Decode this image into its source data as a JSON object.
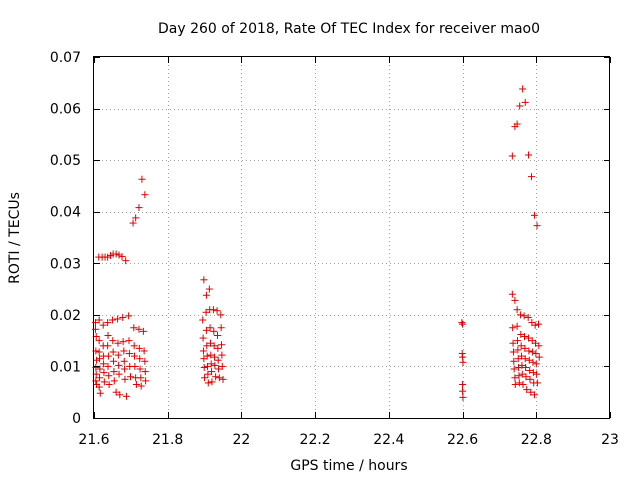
{
  "chart_data": {
    "type": "scatter",
    "title": "Day 260 of 2018, Rate Of TEC Index for receiver mao0",
    "xlabel": "GPS time / hours",
    "ylabel": "ROTI / TECUs",
    "xlim": [
      21.6,
      23.0
    ],
    "ylim": [
      0,
      0.07
    ],
    "xticks": [
      21.6,
      21.8,
      22.0,
      22.2,
      22.4,
      22.6,
      22.8,
      23.0
    ],
    "xtick_labels": [
      "21.6",
      "21.8",
      "22",
      "22.2",
      "22.4",
      "22.6",
      "22.8",
      "23"
    ],
    "yticks": [
      0,
      0.01,
      0.02,
      0.03,
      0.04,
      0.05,
      0.06,
      0.07
    ],
    "ytick_labels": [
      "0",
      "0.01",
      "0.02",
      "0.03",
      "0.04",
      "0.05",
      "0.06",
      "0.07"
    ],
    "grid": true,
    "marker": "+",
    "series": [
      {
        "name": "ROTI",
        "color": "#e00000",
        "points": [
          [
            21.604,
            0.0185
          ],
          [
            21.604,
            0.0172
          ],
          [
            21.606,
            0.0158
          ],
          [
            21.605,
            0.013
          ],
          [
            21.607,
            0.0112
          ],
          [
            21.605,
            0.0098
          ],
          [
            21.606,
            0.0085
          ],
          [
            21.605,
            0.0072
          ],
          [
            21.607,
            0.0065
          ],
          [
            21.614,
            0.019
          ],
          [
            21.614,
            0.015
          ],
          [
            21.614,
            0.0128
          ],
          [
            21.615,
            0.0115
          ],
          [
            21.616,
            0.0095
          ],
          [
            21.615,
            0.0078
          ],
          [
            21.614,
            0.006
          ],
          [
            21.617,
            0.0048
          ],
          [
            21.613,
            0.0312
          ],
          [
            21.622,
            0.0312
          ],
          [
            21.63,
            0.0312
          ],
          [
            21.637,
            0.0312
          ],
          [
            21.645,
            0.0315
          ],
          [
            21.652,
            0.0318
          ],
          [
            21.66,
            0.0318
          ],
          [
            21.668,
            0.0316
          ],
          [
            21.676,
            0.0313
          ],
          [
            21.686,
            0.0305
          ],
          [
            21.625,
            0.018
          ],
          [
            21.625,
            0.014
          ],
          [
            21.626,
            0.012
          ],
          [
            21.626,
            0.0105
          ],
          [
            21.627,
            0.0088
          ],
          [
            21.628,
            0.007
          ],
          [
            21.637,
            0.0185
          ],
          [
            21.638,
            0.016
          ],
          [
            21.637,
            0.014
          ],
          [
            21.639,
            0.012
          ],
          [
            21.638,
            0.01
          ],
          [
            21.64,
            0.0082
          ],
          [
            21.641,
            0.0065
          ],
          [
            21.65,
            0.019
          ],
          [
            21.651,
            0.015
          ],
          [
            21.652,
            0.0128
          ],
          [
            21.653,
            0.011
          ],
          [
            21.654,
            0.009
          ],
          [
            21.655,
            0.0072
          ],
          [
            21.66,
            0.005
          ],
          [
            21.664,
            0.0192
          ],
          [
            21.665,
            0.0145
          ],
          [
            21.666,
            0.0122
          ],
          [
            21.667,
            0.0102
          ],
          [
            21.668,
            0.0085
          ],
          [
            21.67,
            0.0045
          ],
          [
            21.678,
            0.0195
          ],
          [
            21.679,
            0.0148
          ],
          [
            21.681,
            0.013
          ],
          [
            21.682,
            0.011
          ],
          [
            21.683,
            0.0095
          ],
          [
            21.684,
            0.0075
          ],
          [
            21.688,
            0.0042
          ],
          [
            21.694,
            0.0198
          ],
          [
            21.695,
            0.015
          ],
          [
            21.696,
            0.0125
          ],
          [
            21.697,
            0.01
          ],
          [
            21.699,
            0.008
          ],
          [
            21.708,
            0.0175
          ],
          [
            21.709,
            0.014
          ],
          [
            21.71,
            0.012
          ],
          [
            21.711,
            0.01
          ],
          [
            21.713,
            0.0078
          ],
          [
            21.715,
            0.0065
          ],
          [
            21.722,
            0.0172
          ],
          [
            21.723,
            0.0135
          ],
          [
            21.724,
            0.0115
          ],
          [
            21.725,
            0.0095
          ],
          [
            21.727,
            0.0078
          ],
          [
            21.728,
            0.0062
          ],
          [
            21.734,
            0.0168
          ],
          [
            21.736,
            0.013
          ],
          [
            21.738,
            0.011
          ],
          [
            21.739,
            0.009
          ],
          [
            21.74,
            0.0072
          ],
          [
            21.706,
            0.0378
          ],
          [
            21.713,
            0.0388
          ],
          [
            21.722,
            0.0408
          ],
          [
            21.73,
            0.0463
          ],
          [
            21.738,
            0.0433
          ],
          [
            21.898,
            0.0268
          ],
          [
            21.905,
            0.0238
          ],
          [
            21.913,
            0.025
          ],
          [
            21.895,
            0.019
          ],
          [
            21.896,
            0.0155
          ],
          [
            21.897,
            0.013
          ],
          [
            21.898,
            0.0115
          ],
          [
            21.899,
            0.0098
          ],
          [
            21.9,
            0.0078
          ],
          [
            21.904,
            0.0205
          ],
          [
            21.905,
            0.017
          ],
          [
            21.906,
            0.014
          ],
          [
            21.907,
            0.012
          ],
          [
            21.908,
            0.01
          ],
          [
            21.909,
            0.0085
          ],
          [
            21.91,
            0.0068
          ],
          [
            21.914,
            0.021
          ],
          [
            21.915,
            0.0175
          ],
          [
            21.916,
            0.0145
          ],
          [
            21.917,
            0.0122
          ],
          [
            21.918,
            0.0105
          ],
          [
            21.919,
            0.009
          ],
          [
            21.92,
            0.007
          ],
          [
            21.924,
            0.021
          ],
          [
            21.925,
            0.0168
          ],
          [
            21.926,
            0.014
          ],
          [
            21.927,
            0.0118
          ],
          [
            21.928,
            0.0102
          ],
          [
            21.93,
            0.008
          ],
          [
            21.934,
            0.0208
          ],
          [
            21.935,
            0.016
          ],
          [
            21.936,
            0.0135
          ],
          [
            21.937,
            0.0112
          ],
          [
            21.938,
            0.0095
          ],
          [
            21.94,
            0.0078
          ],
          [
            21.944,
            0.02
          ],
          [
            21.945,
            0.0175
          ],
          [
            21.946,
            0.0142
          ],
          [
            21.947,
            0.0122
          ],
          [
            21.948,
            0.01
          ],
          [
            21.95,
            0.0075
          ],
          [
            22.598,
            0.0185
          ],
          [
            22.6,
            0.0182
          ],
          [
            22.599,
            0.0125
          ],
          [
            22.6,
            0.0118
          ],
          [
            22.601,
            0.0108
          ],
          [
            22.6,
            0.0065
          ],
          [
            22.6,
            0.0052
          ],
          [
            22.601,
            0.004
          ],
          [
            22.735,
            0.0508
          ],
          [
            22.742,
            0.0565
          ],
          [
            22.748,
            0.057
          ],
          [
            22.755,
            0.0605
          ],
          [
            22.763,
            0.0638
          ],
          [
            22.77,
            0.0612
          ],
          [
            22.779,
            0.051
          ],
          [
            22.787,
            0.0468
          ],
          [
            22.795,
            0.0393
          ],
          [
            22.802,
            0.0373
          ],
          [
            22.735,
            0.024
          ],
          [
            22.742,
            0.0228
          ],
          [
            22.748,
            0.021
          ],
          [
            22.736,
            0.0175
          ],
          [
            22.737,
            0.0145
          ],
          [
            22.738,
            0.0128
          ],
          [
            22.739,
            0.011
          ],
          [
            22.74,
            0.0095
          ],
          [
            22.742,
            0.0078
          ],
          [
            22.743,
            0.0065
          ],
          [
            22.748,
            0.0178
          ],
          [
            22.749,
            0.015
          ],
          [
            22.75,
            0.0132
          ],
          [
            22.751,
            0.0115
          ],
          [
            22.752,
            0.0098
          ],
          [
            22.753,
            0.0082
          ],
          [
            22.754,
            0.0068
          ],
          [
            22.757,
            0.02
          ],
          [
            22.758,
            0.0162
          ],
          [
            22.759,
            0.014
          ],
          [
            22.76,
            0.012
          ],
          [
            22.761,
            0.0102
          ],
          [
            22.762,
            0.0085
          ],
          [
            22.764,
            0.0065
          ],
          [
            22.767,
            0.0198
          ],
          [
            22.768,
            0.0158
          ],
          [
            22.769,
            0.0135
          ],
          [
            22.77,
            0.0115
          ],
          [
            22.771,
            0.0098
          ],
          [
            22.772,
            0.008
          ],
          [
            22.774,
            0.0055
          ],
          [
            22.778,
            0.0195
          ],
          [
            22.779,
            0.0155
          ],
          [
            22.78,
            0.013
          ],
          [
            22.781,
            0.0112
          ],
          [
            22.782,
            0.0092
          ],
          [
            22.783,
            0.0075
          ],
          [
            22.785,
            0.005
          ],
          [
            22.788,
            0.0185
          ],
          [
            22.789,
            0.015
          ],
          [
            22.79,
            0.0128
          ],
          [
            22.791,
            0.0108
          ],
          [
            22.792,
            0.0088
          ],
          [
            22.793,
            0.0068
          ],
          [
            22.795,
            0.0045
          ],
          [
            22.797,
            0.018
          ],
          [
            22.798,
            0.0145
          ],
          [
            22.799,
            0.0125
          ],
          [
            22.8,
            0.0105
          ],
          [
            22.801,
            0.0085
          ],
          [
            22.803,
            0.0068
          ],
          [
            22.806,
            0.0182
          ],
          [
            22.807,
            0.014
          ],
          [
            22.808,
            0.0118
          ]
        ]
      }
    ]
  }
}
